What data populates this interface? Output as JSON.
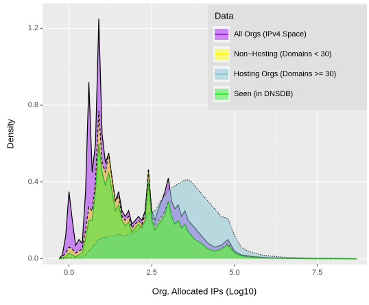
{
  "chart_data": {
    "type": "density",
    "x_label": "Org. Allocated IPs (Log10)",
    "y_label": "Density",
    "legend_title": "Data",
    "legend": "top-right",
    "grid": true,
    "xlim": [
      -0.8,
      9.0
    ],
    "ylim": [
      -0.03,
      1.33
    ],
    "xticks": [
      {
        "value": 0,
        "label": "0.0"
      },
      {
        "value": 2.5,
        "label": "2.5"
      },
      {
        "value": 5,
        "label": "5.0"
      },
      {
        "value": 7.5,
        "label": "7.5"
      }
    ],
    "yticks": [
      {
        "value": 0,
        "label": "0.0"
      },
      {
        "value": 0.4,
        "label": "0.4"
      },
      {
        "value": 0.8,
        "label": "0.8"
      },
      {
        "value": 1.2,
        "label": "1.2"
      }
    ],
    "x": [
      -0.3,
      -0.2,
      -0.1,
      0,
      0.1,
      0.2,
      0.3,
      0.4,
      0.5,
      0.6,
      0.7,
      0.8,
      0.9,
      1.0,
      1.1,
      1.2,
      1.3,
      1.4,
      1.5,
      1.6,
      1.7,
      1.8,
      1.9,
      2.0,
      2.1,
      2.2,
      2.3,
      2.4,
      2.5,
      2.6,
      2.7,
      2.8,
      2.9,
      3.0,
      3.1,
      3.2,
      3.3,
      3.4,
      3.5,
      3.6,
      3.7,
      3.8,
      3.9,
      4.0,
      4.2,
      4.4,
      4.6,
      4.8,
      5.0,
      5.2,
      5.4,
      5.6,
      5.8,
      6.0,
      6.5,
      7.0,
      7.5,
      8.0,
      8.7
    ],
    "series": [
      {
        "name": "All Orgs (IPv4 Space)",
        "color": "#a020f0",
        "outline": "#000000",
        "linetype": "solid",
        "values": [
          0,
          0.02,
          0.12,
          0.35,
          0.2,
          0.07,
          0.1,
          0.08,
          0.35,
          0.92,
          0.45,
          0.6,
          1.25,
          0.65,
          0.5,
          0.55,
          0.42,
          0.3,
          0.35,
          0.25,
          0.22,
          0.25,
          0.18,
          0.2,
          0.22,
          0.2,
          0.25,
          0.45,
          0.25,
          0.2,
          0.26,
          0.3,
          0.35,
          0.42,
          0.3,
          0.26,
          0.28,
          0.22,
          0.25,
          0.2,
          0.18,
          0.16,
          0.14,
          0.12,
          0.08,
          0.06,
          0.07,
          0.1,
          0.04,
          0.02,
          0.015,
          0.01,
          0.008,
          0.005,
          0.003,
          0.002,
          0.001,
          0.001,
          0
        ]
      },
      {
        "name": "Non−Hosting (Domains < 30)",
        "color": "#ffff00",
        "outline": "#000000",
        "linetype": "dashed",
        "values": [
          0,
          0.01,
          0.03,
          0.06,
          0.05,
          0.03,
          0.04,
          0.05,
          0.15,
          0.27,
          0.25,
          0.4,
          0.77,
          0.5,
          0.45,
          0.55,
          0.42,
          0.3,
          0.33,
          0.22,
          0.2,
          0.22,
          0.16,
          0.18,
          0.2,
          0.18,
          0.23,
          0.47,
          0.22,
          0.17,
          0.2,
          0.22,
          0.25,
          0.3,
          0.22,
          0.18,
          0.2,
          0.16,
          0.18,
          0.14,
          0.12,
          0.1,
          0.09,
          0.08,
          0.05,
          0.04,
          0.05,
          0.08,
          0.03,
          0.015,
          0.01,
          0.007,
          0.005,
          0.003,
          0.002,
          0.001,
          0,
          0,
          0
        ]
      },
      {
        "name": "Hosting Orgs (Domains >= 30)",
        "color": "#87c4d2",
        "outline": "#000000",
        "linetype": "dotted",
        "values": [
          0,
          0,
          0.002,
          0.005,
          0.005,
          0.005,
          0.008,
          0.01,
          0.02,
          0.04,
          0.06,
          0.08,
          0.1,
          0.11,
          0.11,
          0.12,
          0.12,
          0.12,
          0.13,
          0.12,
          0.12,
          0.13,
          0.13,
          0.14,
          0.15,
          0.17,
          0.2,
          0.24,
          0.24,
          0.25,
          0.28,
          0.31,
          0.33,
          0.36,
          0.37,
          0.38,
          0.39,
          0.4,
          0.41,
          0.41,
          0.4,
          0.38,
          0.36,
          0.34,
          0.3,
          0.26,
          0.22,
          0.21,
          0.12,
          0.06,
          0.04,
          0.03,
          0.02,
          0.015,
          0.008,
          0.004,
          0.002,
          0.001,
          0
        ]
      },
      {
        "name": "Seen (in DNSDB)",
        "color": "#33ee33",
        "outline": "#2fae2f",
        "linetype": "solid",
        "values": [
          0,
          0.005,
          0.01,
          0.03,
          0.02,
          0.01,
          0.02,
          0.03,
          0.1,
          0.2,
          0.2,
          0.35,
          0.6,
          0.45,
          0.38,
          0.45,
          0.35,
          0.25,
          0.28,
          0.2,
          0.17,
          0.19,
          0.14,
          0.16,
          0.18,
          0.16,
          0.2,
          0.4,
          0.2,
          0.15,
          0.18,
          0.2,
          0.23,
          0.3,
          0.22,
          0.18,
          0.2,
          0.16,
          0.18,
          0.14,
          0.12,
          0.1,
          0.09,
          0.08,
          0.05,
          0.04,
          0.05,
          0.07,
          0.03,
          0.015,
          0.01,
          0.007,
          0.005,
          0.003,
          0.002,
          0.001,
          0,
          0,
          0
        ]
      }
    ]
  }
}
